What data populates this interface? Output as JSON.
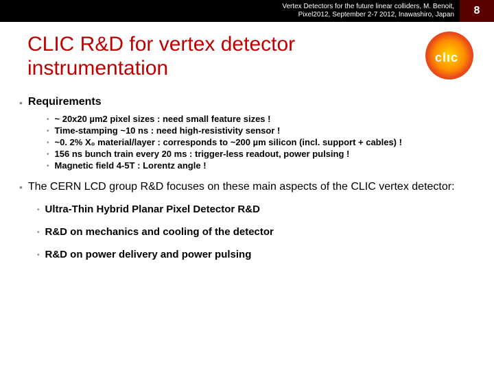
{
  "header": {
    "line1": "Vertex Detectors for the future linear colliders, M. Benoit,",
    "line2": "Pixel2012, September 2-7 2012,  Inawashiro, Japan",
    "page_number": "8"
  },
  "title": "CLIC R&D for vertex detector instrumentation",
  "logo": {
    "text": "clıc"
  },
  "requirements": {
    "heading": "Requirements",
    "items": [
      "~ 20x20 µm2 pixel sizes :  need small feature sizes !",
      " Time-stamping ~10 ns : need high-resistivity sensor !",
      "~0. 2% X₀ material/layer : corresponds to ~200 µm silicon (incl. support + cables) !",
      "156 ns bunch train every 20 ms : trigger-less readout, power pulsing !",
      "Magnetic field  4-5T : Lorentz angle !"
    ]
  },
  "focus": {
    "heading": "The CERN LCD group R&D focuses on these main aspects of the CLIC vertex detector:",
    "items": [
      "Ultra-Thin Hybrid Planar Pixel Detector R&D",
      "R&D on mechanics and cooling of the detector",
      "R&D on power delivery and power pulsing"
    ]
  }
}
